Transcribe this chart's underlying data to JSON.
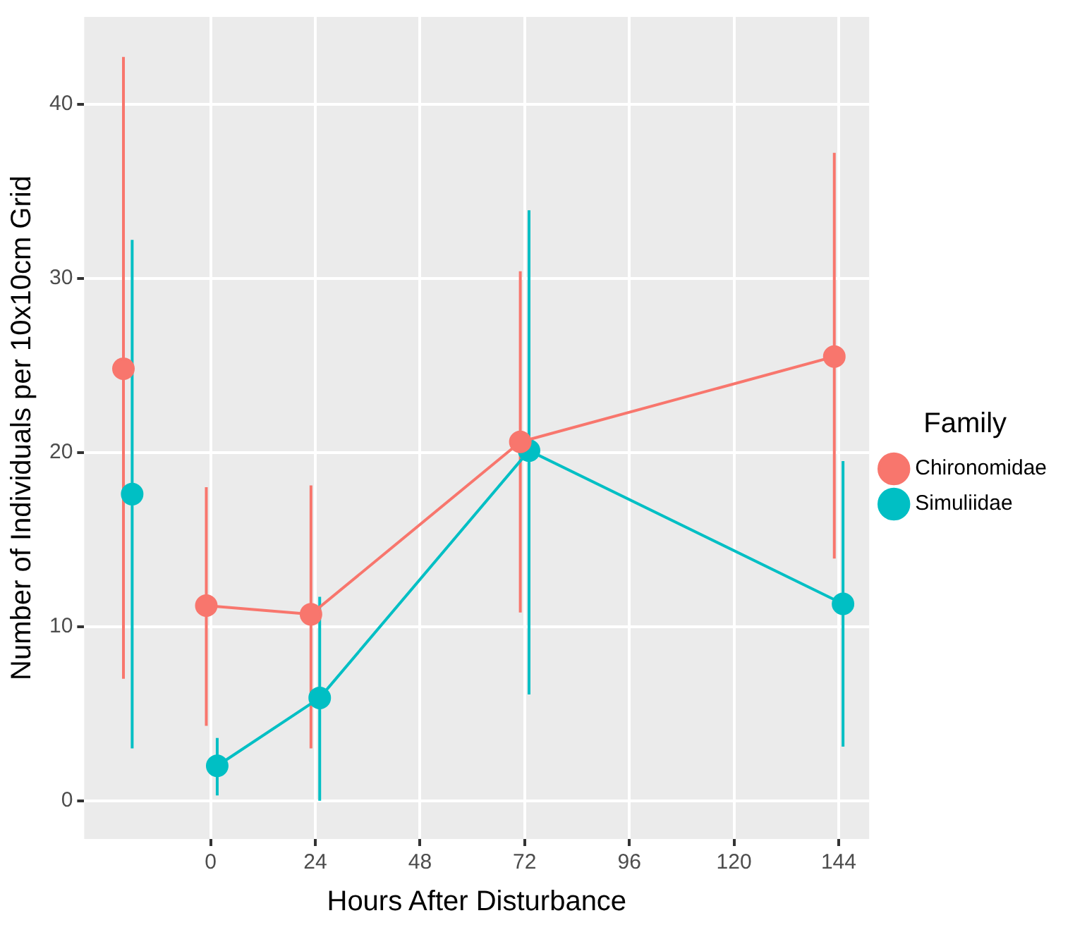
{
  "chart_data": {
    "type": "line",
    "xlabel": "Hours After Disturbance",
    "ylabel": "Number of Individuals per 10x10cm Grid",
    "legend_title": "Family",
    "xlim": [
      -29,
      151
    ],
    "ylim": [
      -2.2,
      45
    ],
    "xticks": [
      0,
      24,
      48,
      72,
      96,
      120,
      144
    ],
    "yticks": [
      0,
      10,
      20,
      30,
      40
    ],
    "grid": true,
    "legend": "right",
    "marker": "circle",
    "line_style": "solid",
    "series": [
      {
        "name": "Chironomidae",
        "color": "#f8766d",
        "x": [
          -1,
          23,
          71,
          143
        ],
        "values": [
          11.2,
          10.7,
          20.6,
          25.5
        ],
        "errors": [
          [
            4.3,
            18
          ],
          [
            3,
            18.1
          ],
          [
            10.8,
            30.4
          ],
          [
            13.9,
            37.2
          ]
        ]
      },
      {
        "name": "Simuliidae",
        "color": "#00bfc4",
        "x": [
          1.5,
          25,
          73,
          145
        ],
        "values": [
          2.0,
          5.9,
          20.1,
          11.3
        ],
        "errors": [
          [
            0.3,
            3.6
          ],
          [
            0,
            11.7
          ],
          [
            6.1,
            33.9
          ],
          [
            3.1,
            19.5
          ]
        ]
      },
      {
        "type": "scatter",
        "color": "#f8766d",
        "x": [
          -20
        ],
        "values": [
          24.8
        ],
        "errors": [
          [
            7,
            42.7
          ]
        ]
      },
      {
        "type": "scatter",
        "color": "#00bfc4",
        "x": [
          -18
        ],
        "values": [
          17.6
        ],
        "errors": [
          [
            3,
            32.2
          ]
        ]
      }
    ]
  }
}
